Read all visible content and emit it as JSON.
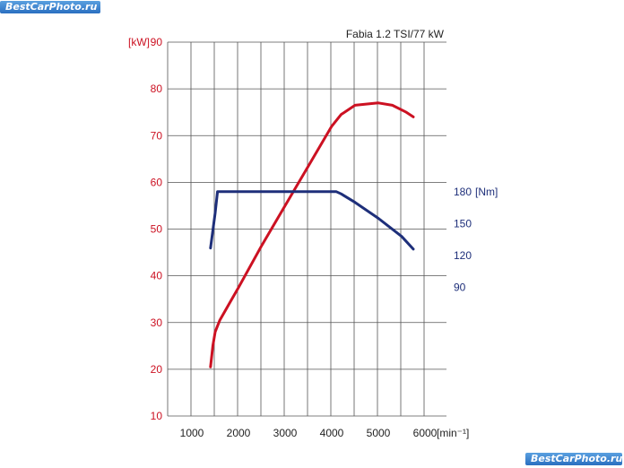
{
  "watermark": {
    "top_text": "BestCarPhoto.ru",
    "bottom_text": "BestCarPhoto.ru"
  },
  "chart_data": {
    "type": "line",
    "title": "Fabia 1.2 TSI/77 kW",
    "xlabel": "[min⁻¹]",
    "xlim": [
      0,
      6500
    ],
    "x_ticks": [
      1000,
      2000,
      3000,
      4000,
      5000,
      6000
    ],
    "y_left": {
      "label": "[kW]",
      "lim": [
        10,
        90
      ],
      "ticks": [
        10,
        20,
        30,
        40,
        50,
        60,
        70,
        80,
        90
      ],
      "color": "#cc1122"
    },
    "y_right": {
      "label": "[Nm]",
      "ticks": [
        90,
        120,
        150,
        180
      ],
      "color": "#1e2f7a"
    },
    "grid": true,
    "series": [
      {
        "axis": "left",
        "color": "#cc1122",
        "unit": "kW",
        "points": [
          [
            1400,
            20.5
          ],
          [
            1450,
            25
          ],
          [
            1500,
            28
          ],
          [
            1600,
            30.5
          ],
          [
            1800,
            34
          ],
          [
            2000,
            37.5
          ],
          [
            2500,
            46.5
          ],
          [
            3000,
            55
          ],
          [
            3500,
            63.5
          ],
          [
            4000,
            72
          ],
          [
            4200,
            74.5
          ],
          [
            4500,
            76.5
          ],
          [
            5000,
            77
          ],
          [
            5300,
            76.5
          ],
          [
            5600,
            75
          ],
          [
            5750,
            74
          ]
        ]
      },
      {
        "axis": "right",
        "color": "#1e2f7a",
        "unit": "Nm",
        "points": [
          [
            1400,
            127
          ],
          [
            1500,
            160
          ],
          [
            1550,
            180
          ],
          [
            4100,
            180
          ],
          [
            4200,
            178
          ],
          [
            4500,
            170
          ],
          [
            5000,
            155
          ],
          [
            5500,
            138
          ],
          [
            5750,
            126
          ]
        ]
      }
    ]
  }
}
